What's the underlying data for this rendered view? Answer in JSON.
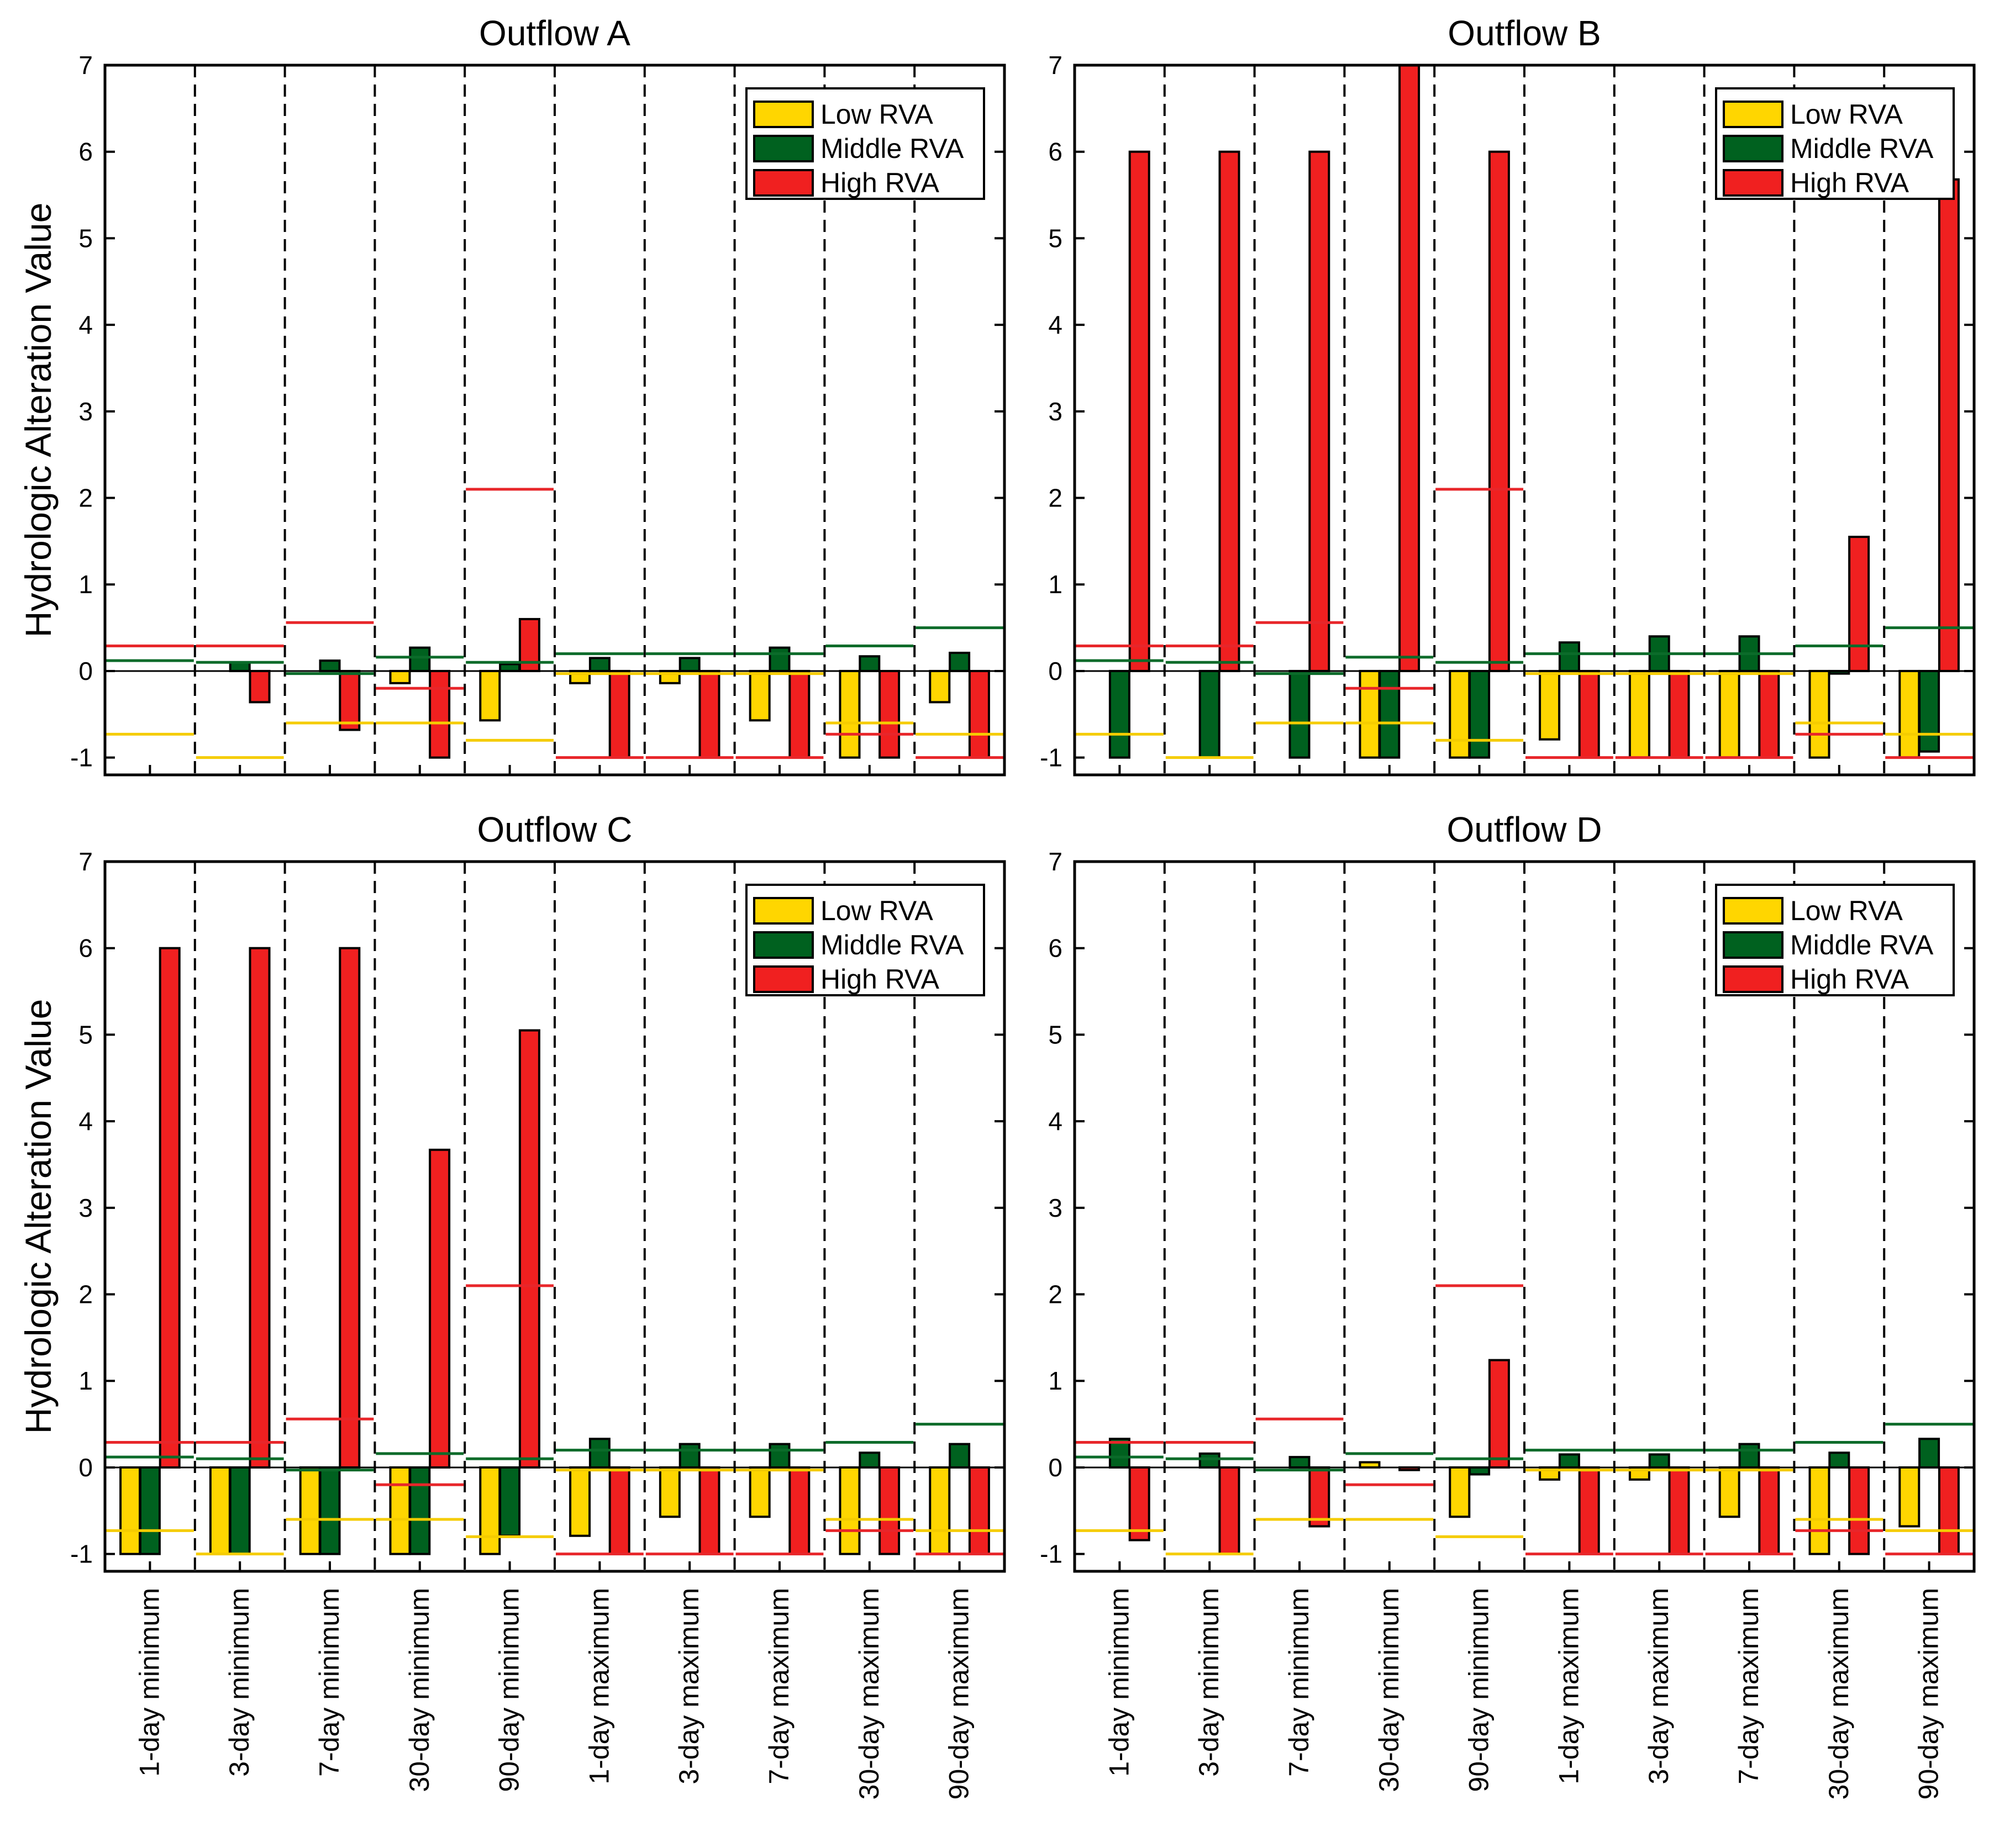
{
  "colors": {
    "low": "#FFD600",
    "middle": "#00611F",
    "high": "#F02020",
    "low_line": "#F5CC00",
    "middle_line": "#0B6B2A",
    "high_line": "#E8262A"
  },
  "chart_data": [
    {
      "type": "bar",
      "title": "Outflow A",
      "xlabel": "",
      "ylabel": "Hydrologic Alteration Value",
      "ylim": [
        -1.2,
        7
      ],
      "yticks": [
        -1,
        0,
        1,
        2,
        3,
        4,
        5,
        6,
        7
      ],
      "categories": [
        "1-day minimum",
        "3-day minimum",
        "7-day minimum",
        "30-day minimum",
        "90-day minimum",
        "1-day maximum",
        "3-day maximum",
        "7-day maximum",
        "30-day maximum",
        "90-day maximum"
      ],
      "series": [
        {
          "name": "Low RVA",
          "values": [
            0,
            0,
            0,
            -0.14,
            -0.57,
            -0.14,
            -0.14,
            -0.57,
            -1,
            -0.36
          ]
        },
        {
          "name": "Middle RVA",
          "values": [
            0,
            0.1,
            0.12,
            0.27,
            0.08,
            0.15,
            0.15,
            0.27,
            0.17,
            0.21
          ]
        },
        {
          "name": "High RVA",
          "values": [
            0,
            -0.36,
            -0.68,
            -1,
            0.6,
            -1,
            -1,
            -1,
            -1,
            -1
          ]
        }
      ],
      "reference_lines": [
        {
          "name": "Low RVA",
          "values": [
            -0.73,
            -1,
            -0.6,
            -0.6,
            -0.8,
            -0.03,
            -0.03,
            -0.03,
            -0.6,
            -0.73
          ]
        },
        {
          "name": "Middle RVA",
          "values": [
            0.12,
            0.1,
            -0.03,
            0.16,
            0.1,
            0.2,
            0.2,
            0.2,
            0.29,
            0.5
          ]
        },
        {
          "name": "High RVA",
          "values": [
            0.29,
            0.29,
            0.56,
            -0.2,
            2.1,
            -1,
            -1,
            -1,
            -0.73,
            -1
          ]
        }
      ],
      "legend": {
        "position": "top-right",
        "entries": [
          "Low RVA",
          "Middle RVA",
          "High RVA"
        ]
      }
    },
    {
      "type": "bar",
      "title": "Outflow B",
      "xlabel": "",
      "ylabel": "",
      "ylim": [
        -1.2,
        7
      ],
      "yticks": [
        -1,
        0,
        1,
        2,
        3,
        4,
        5,
        6,
        7
      ],
      "categories": [
        "1-day minimum",
        "3-day minimum",
        "7-day minimum",
        "30-day minimum",
        "90-day minimum",
        "1-day maximum",
        "3-day maximum",
        "7-day maximum",
        "30-day maximum",
        "90-day maximum"
      ],
      "series": [
        {
          "name": "Low RVA",
          "values": [
            0,
            0,
            0,
            -1,
            -1,
            -0.79,
            -1,
            -1,
            -1,
            -1
          ]
        },
        {
          "name": "Middle RVA",
          "values": [
            -1,
            -1,
            -1,
            -1,
            -1,
            0.33,
            0.4,
            0.4,
            -0.03,
            -0.93
          ]
        },
        {
          "name": "High RVA",
          "values": [
            6,
            6,
            6,
            7,
            6,
            -1,
            -1,
            -1,
            1.55,
            5.68
          ]
        }
      ],
      "reference_lines": [
        {
          "name": "Low RVA",
          "values": [
            -0.73,
            -1,
            -0.6,
            -0.6,
            -0.8,
            -0.03,
            -0.03,
            -0.03,
            -0.6,
            -0.73
          ]
        },
        {
          "name": "Middle RVA",
          "values": [
            0.12,
            0.1,
            -0.03,
            0.16,
            0.1,
            0.2,
            0.2,
            0.2,
            0.29,
            0.5
          ]
        },
        {
          "name": "High RVA",
          "values": [
            0.29,
            0.29,
            0.56,
            -0.2,
            2.1,
            -1,
            -1,
            -1,
            -0.73,
            -1
          ]
        }
      ],
      "legend": {
        "position": "top-right",
        "entries": [
          "Low RVA",
          "Middle RVA",
          "High RVA"
        ]
      }
    },
    {
      "type": "bar",
      "title": "Outflow C",
      "xlabel": "",
      "ylabel": "Hydrologic Alteration Value",
      "ylim": [
        -1.2,
        7
      ],
      "yticks": [
        -1,
        0,
        1,
        2,
        3,
        4,
        5,
        6,
        7
      ],
      "categories": [
        "1-day minimum",
        "3-day minimum",
        "7-day minimum",
        "30-day minimum",
        "90-day minimum",
        "1-day maximum",
        "3-day maximum",
        "7-day maximum",
        "30-day maximum",
        "90-day maximum"
      ],
      "series": [
        {
          "name": "Low RVA",
          "values": [
            -1,
            -1,
            -1,
            -1,
            -1,
            -0.79,
            -0.57,
            -0.57,
            -1,
            -1
          ]
        },
        {
          "name": "Middle RVA",
          "values": [
            -1,
            -1,
            -1,
            -1,
            -0.79,
            0.33,
            0.27,
            0.27,
            0.17,
            0.27
          ]
        },
        {
          "name": "High RVA",
          "values": [
            6,
            6,
            6,
            3.67,
            5.05,
            -1,
            -1,
            -1,
            -1,
            -1
          ]
        }
      ],
      "reference_lines": [
        {
          "name": "Low RVA",
          "values": [
            -0.73,
            -1,
            -0.6,
            -0.6,
            -0.8,
            -0.03,
            -0.03,
            -0.03,
            -0.6,
            -0.73
          ]
        },
        {
          "name": "Middle RVA",
          "values": [
            0.12,
            0.1,
            -0.03,
            0.16,
            0.1,
            0.2,
            0.2,
            0.2,
            0.29,
            0.5
          ]
        },
        {
          "name": "High RVA",
          "values": [
            0.29,
            0.29,
            0.56,
            -0.2,
            2.1,
            -1,
            -1,
            -1,
            -0.73,
            -1
          ]
        }
      ],
      "legend": {
        "position": "top-right",
        "entries": [
          "Low RVA",
          "Middle RVA",
          "High RVA"
        ]
      }
    },
    {
      "type": "bar",
      "title": "Outflow D",
      "xlabel": "",
      "ylabel": "",
      "ylim": [
        -1.2,
        7
      ],
      "yticks": [
        -1,
        0,
        1,
        2,
        3,
        4,
        5,
        6,
        7
      ],
      "categories": [
        "1-day minimum",
        "3-day minimum",
        "7-day minimum",
        "30-day minimum",
        "90-day minimum",
        "1-day maximum",
        "3-day maximum",
        "7-day maximum",
        "30-day maximum",
        "90-day maximum"
      ],
      "series": [
        {
          "name": "Low RVA",
          "values": [
            0,
            0,
            0,
            0.06,
            -0.57,
            -0.14,
            -0.14,
            -0.57,
            -1,
            -0.68
          ]
        },
        {
          "name": "Middle RVA",
          "values": [
            0.33,
            0.16,
            0.12,
            0,
            -0.08,
            0.15,
            0.15,
            0.27,
            0.17,
            0.33
          ]
        },
        {
          "name": "High RVA",
          "values": [
            -0.84,
            -1,
            -0.68,
            -0.03,
            1.24,
            -1,
            -1,
            -1,
            -1,
            -1
          ]
        }
      ],
      "reference_lines": [
        {
          "name": "Low RVA",
          "values": [
            -0.73,
            -1,
            -0.6,
            -0.6,
            -0.8,
            -0.03,
            -0.03,
            -0.03,
            -0.6,
            -0.73
          ]
        },
        {
          "name": "Middle RVA",
          "values": [
            0.12,
            0.1,
            -0.03,
            0.16,
            0.1,
            0.2,
            0.2,
            0.2,
            0.29,
            0.5
          ]
        },
        {
          "name": "High RVA",
          "values": [
            0.29,
            0.29,
            0.56,
            -0.2,
            2.1,
            -1,
            -1,
            -1,
            -0.73,
            -1
          ]
        }
      ],
      "legend": {
        "position": "top-right",
        "entries": [
          "Low RVA",
          "Middle RVA",
          "High RVA"
        ]
      }
    }
  ]
}
